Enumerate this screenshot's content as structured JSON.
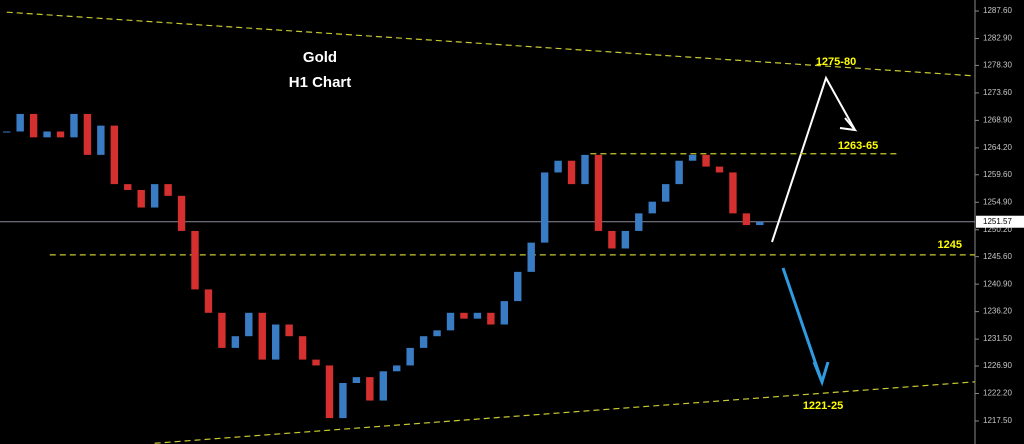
{
  "chart_data": {
    "type": "candlestick",
    "title": "Gold",
    "subtitle": "H1 Chart",
    "close": [
      1267,
      1270,
      1266,
      1267,
      1266,
      1270,
      1263,
      1268,
      1258,
      1257,
      1254,
      1258,
      1256,
      1250,
      1240,
      1236,
      1230,
      1232,
      1236,
      1228,
      1234,
      1232,
      1228,
      1227,
      1218,
      1224,
      1225,
      1221,
      1226,
      1227,
      1230,
      1232,
      1233,
      1236,
      1235,
      1236,
      1234,
      1238,
      1243,
      1248,
      1260,
      1262,
      1258,
      1263,
      1250,
      1247,
      1250,
      1253,
      1255,
      1258,
      1262,
      1263,
      1261,
      1260,
      1253,
      1251,
      1251.57
    ],
    "up_color": "#3a7cc4",
    "down_color": "#d43030",
    "xlim": [
      -0.5,
      72
    ],
    "ylim": [
      1213.57,
      1289.48
    ],
    "yticks": [
      {
        "value": 1287.6,
        "label": "1287.60"
      },
      {
        "value": 1282.9,
        "label": "1282.90"
      },
      {
        "value": 1278.3,
        "label": "1278.30"
      },
      {
        "value": 1273.6,
        "label": "1273.60"
      },
      {
        "value": 1268.9,
        "label": "1268.90"
      },
      {
        "value": 1264.2,
        "label": "1264.20"
      },
      {
        "value": 1259.6,
        "label": "1259.60"
      },
      {
        "value": 1254.9,
        "label": "1254.90"
      },
      {
        "value": 1250.2,
        "label": "1250.20"
      },
      {
        "value": 1245.6,
        "label": "1245.60"
      },
      {
        "value": 1240.9,
        "label": "1240.90"
      },
      {
        "value": 1236.2,
        "label": "1236.20"
      },
      {
        "value": 1231.5,
        "label": "1231.50"
      },
      {
        "value": 1226.9,
        "label": "1226.90"
      },
      {
        "value": 1222.2,
        "label": "1222.20"
      },
      {
        "value": 1217.5,
        "label": "1217.50"
      }
    ],
    "last_price": 1251.57,
    "lines": [
      {
        "x": [
          0,
          72
        ],
        "y": [
          1287.4,
          1276.5
        ]
      },
      {
        "x": [
          11,
          72
        ],
        "y": [
          1213.7,
          1224.2
        ]
      },
      {
        "x": [
          43.4,
          66.4
        ],
        "y": [
          1263.2,
          1263.2
        ]
      },
      {
        "x": [
          3.2,
          72
        ],
        "y": [
          1245.9,
          1245.9
        ]
      }
    ],
    "annotations": [
      "1275-80",
      "1263-65",
      "1245",
      "1221-25"
    ]
  }
}
